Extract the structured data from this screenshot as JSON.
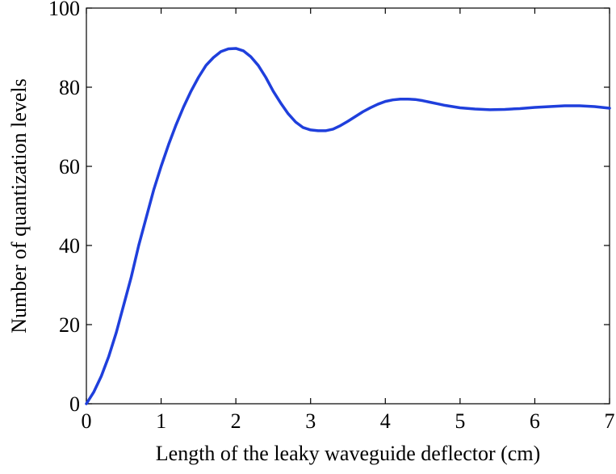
{
  "chart_data": {
    "type": "line",
    "title": "",
    "xlabel": "Length of the leaky waveguide deflector (cm)",
    "ylabel": "Number of quantization levels",
    "xlim": [
      0,
      7
    ],
    "ylim": [
      0,
      100
    ],
    "xticks": [
      0,
      1,
      2,
      3,
      4,
      5,
      6,
      7
    ],
    "yticks": [
      0,
      20,
      40,
      60,
      80,
      100
    ],
    "xtick_labels": [
      "0",
      "1",
      "2",
      "3",
      "4",
      "5",
      "6",
      "7"
    ],
    "ytick_labels": [
      "0",
      "20",
      "40",
      "60",
      "80",
      "100"
    ],
    "grid": false,
    "line_color": "#1f3fdc",
    "series": [
      {
        "x": [
          0,
          0.1,
          0.2,
          0.3,
          0.4,
          0.5,
          0.6,
          0.7,
          0.8,
          0.9,
          1.0,
          1.1,
          1.2,
          1.3,
          1.4,
          1.5,
          1.6,
          1.7,
          1.8,
          1.9,
          2.0,
          2.1,
          2.2,
          2.3,
          2.4,
          2.5,
          2.6,
          2.7,
          2.8,
          2.9,
          3.0,
          3.1,
          3.2,
          3.3,
          3.4,
          3.5,
          3.6,
          3.7,
          3.8,
          3.9,
          4.0,
          4.1,
          4.2,
          4.3,
          4.4,
          4.5,
          4.6,
          4.7,
          4.8,
          4.9,
          5.0,
          5.2,
          5.4,
          5.6,
          5.8,
          6.0,
          6.2,
          6.4,
          6.6,
          6.8,
          7.0
        ],
        "y": [
          0,
          3,
          7,
          12,
          18,
          25,
          32,
          40,
          47,
          54,
          60,
          65.5,
          70.5,
          75,
          79,
          82.5,
          85.5,
          87.5,
          89,
          89.7,
          89.8,
          89.2,
          87.7,
          85.5,
          82.5,
          79,
          76,
          73.3,
          71.2,
          69.8,
          69.2,
          69.0,
          69.0,
          69.4,
          70.3,
          71.4,
          72.6,
          73.8,
          74.8,
          75.7,
          76.4,
          76.8,
          77.0,
          77.0,
          76.9,
          76.6,
          76.2,
          75.8,
          75.4,
          75.1,
          74.8,
          74.5,
          74.3,
          74.4,
          74.6,
          74.9,
          75.1,
          75.3,
          75.3,
          75.1,
          74.7
        ]
      }
    ]
  }
}
